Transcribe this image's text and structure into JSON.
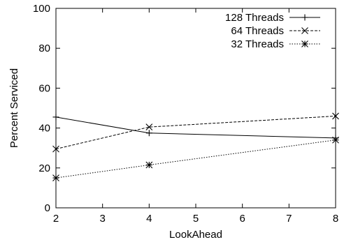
{
  "chart_data": {
    "type": "line",
    "title": "",
    "xlabel": "LookAhead",
    "ylabel": "Percent Serviced",
    "xlim": [
      2,
      8
    ],
    "ylim": [
      0,
      100
    ],
    "x_ticks": [
      "2",
      "3",
      "4",
      "5",
      "6",
      "7",
      "8"
    ],
    "y_ticks": [
      "0",
      "20",
      "40",
      "60",
      "80",
      "100"
    ],
    "grid": false,
    "legend_position": "top-right",
    "x": [
      2,
      4,
      8
    ],
    "series": [
      {
        "name": "128 Threads",
        "values": [
          45.5,
          37.5,
          35
        ],
        "line_style": "solid",
        "marker": "plus"
      },
      {
        "name": "64 Threads",
        "values": [
          29.5,
          40.5,
          46
        ],
        "line_style": "dashed",
        "marker": "cross"
      },
      {
        "name": "32 Threads",
        "values": [
          15,
          21.5,
          34
        ],
        "line_style": "dotted",
        "marker": "star"
      }
    ]
  }
}
